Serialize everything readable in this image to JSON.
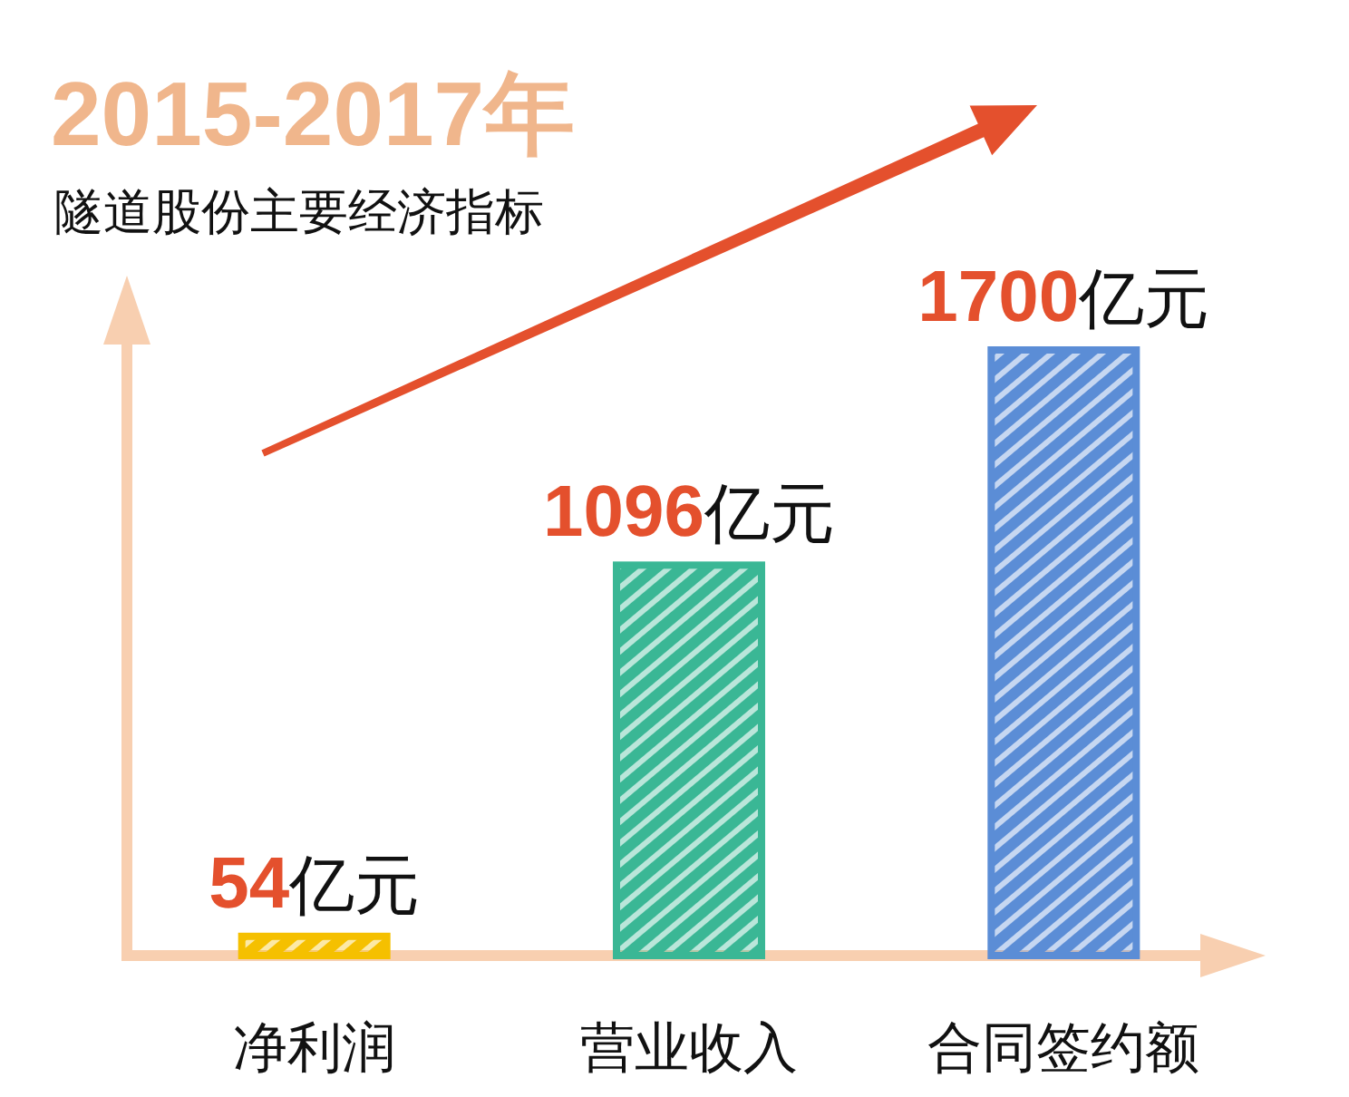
{
  "chart_data": {
    "type": "bar",
    "title": "2015-2017年",
    "subtitle": "隧道股份主要经济指标",
    "categories": [
      "净利润",
      "营业收入",
      "合同签约额"
    ],
    "values": [
      54,
      1096,
      1700
    ],
    "colors": [
      "#f5c000",
      "#3ab795",
      "#5b8dd6"
    ],
    "value_labels": [
      "54亿元",
      "1096亿元",
      "1700亿元"
    ],
    "tick_labels": "x"
  }
}
